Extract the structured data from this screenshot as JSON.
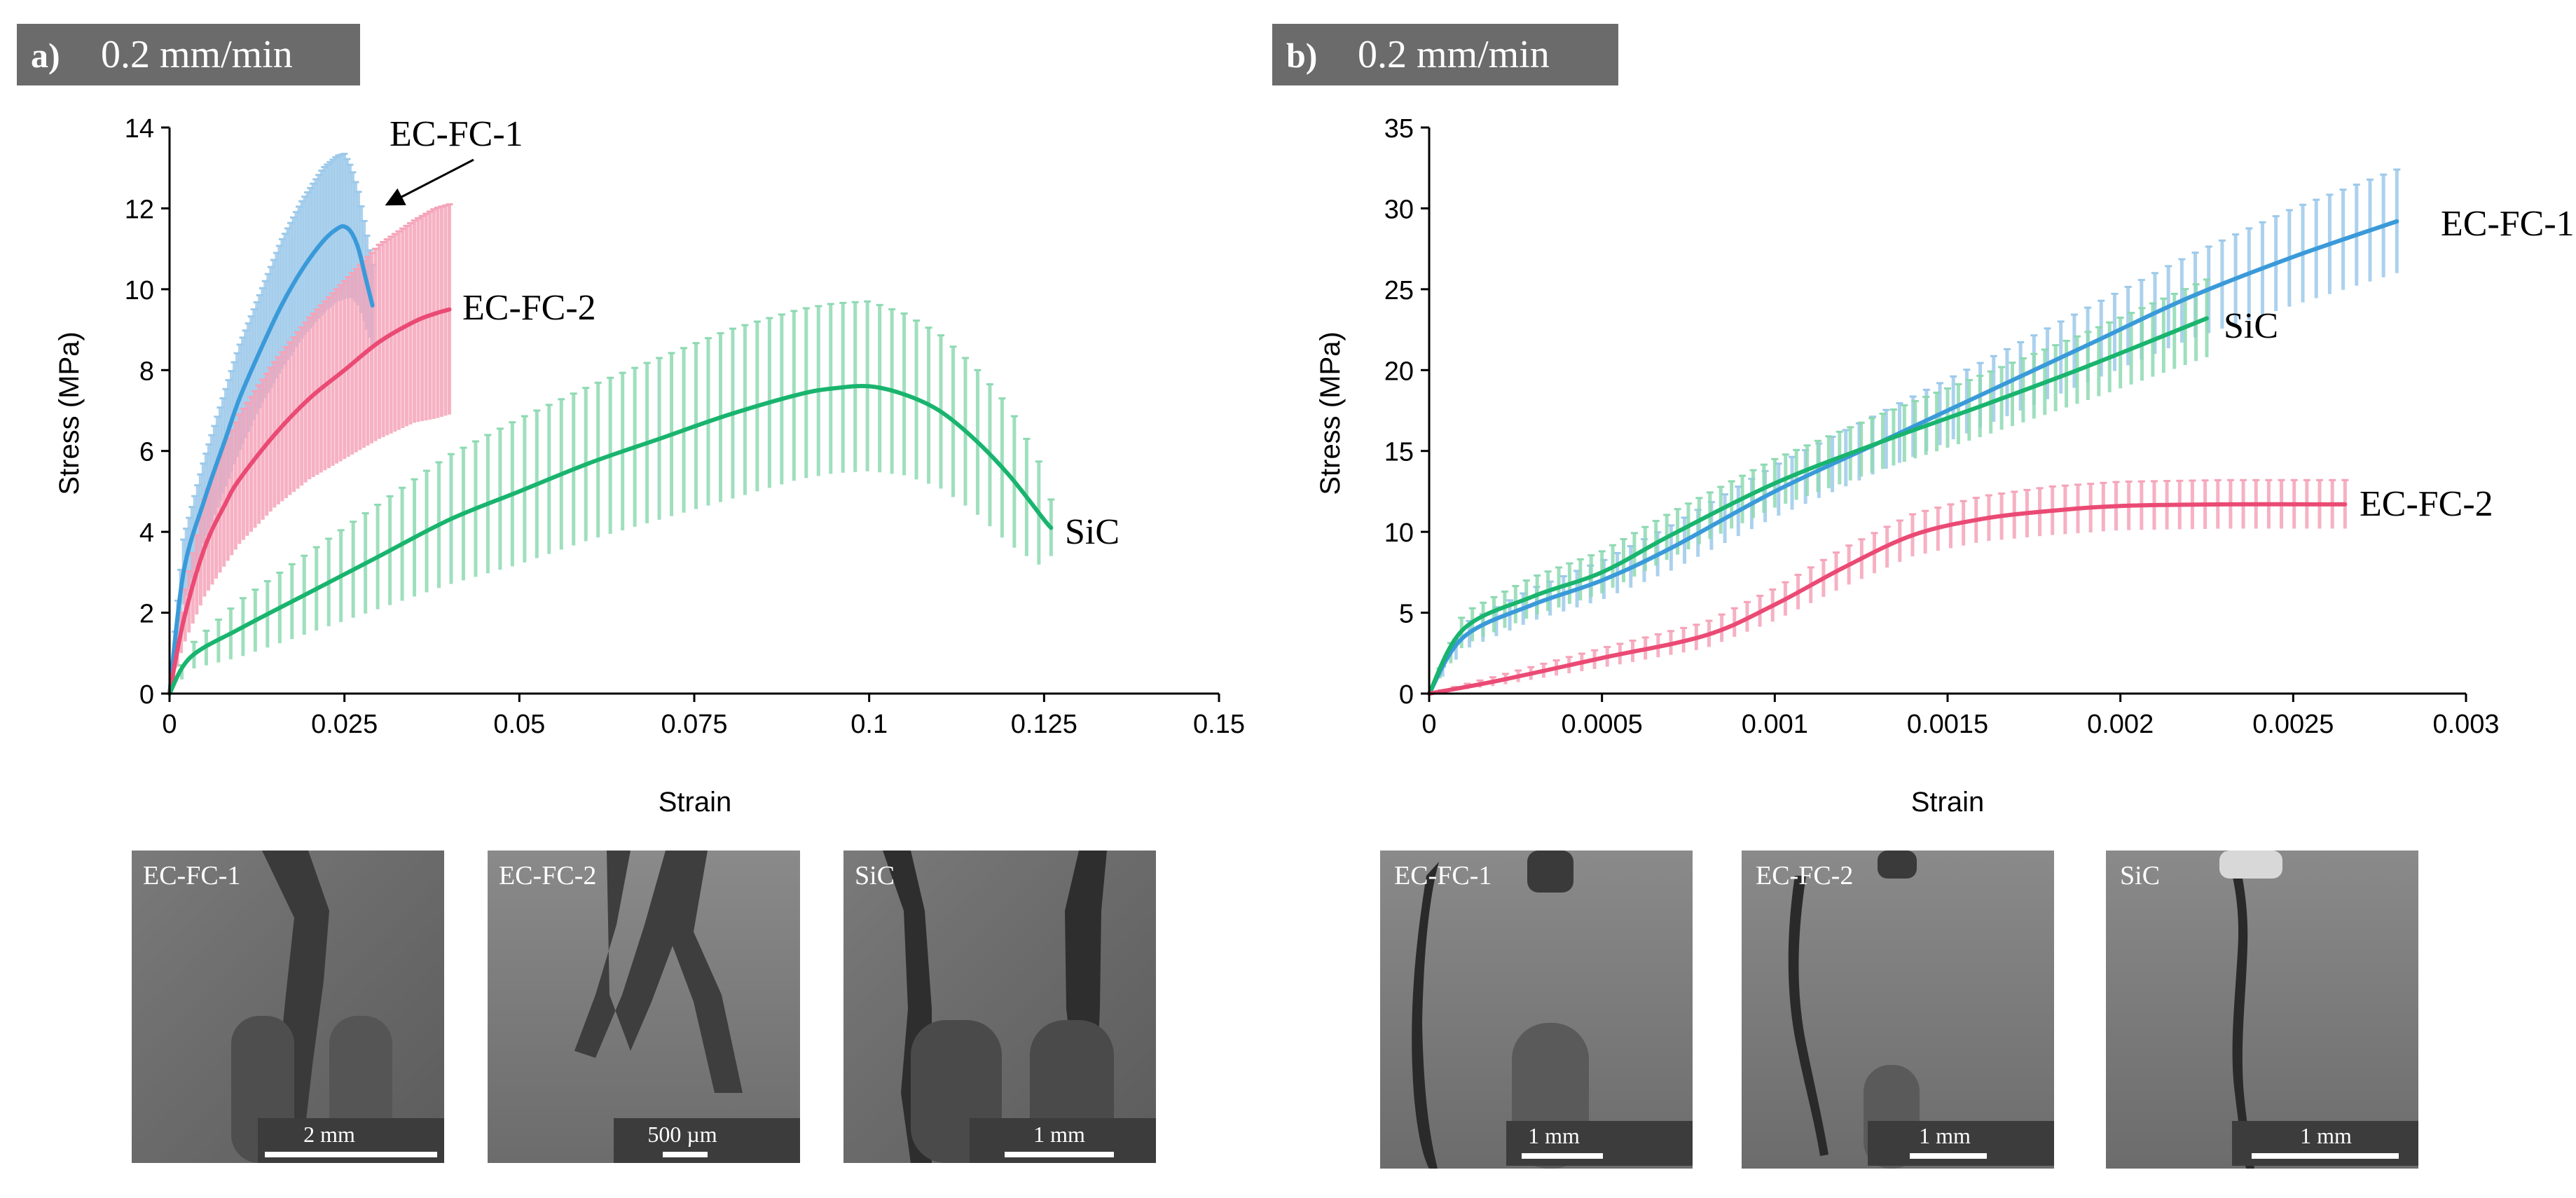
{
  "colors": {
    "ec_fc_1": "#3a9ad9",
    "ec_fc_2": "#ea4a74",
    "sic": "#19b46e",
    "band_ec_fc_1": "#9cc9ea",
    "band_ec_fc_2": "#f5a3b8",
    "band_sic": "#8ed9b2",
    "header_bg": "#6b6b6b",
    "sem_background": "#6f6f6f"
  },
  "chart_data": [
    {
      "panel": "a)",
      "header": "0.2 mm/min",
      "type": "line",
      "title": "",
      "xlabel": "Strain",
      "ylabel": "Stress (MPa)",
      "xlim": [
        0,
        0.15
      ],
      "ylim": [
        0,
        14
      ],
      "xticks": [
        0,
        0.025,
        0.05,
        0.075,
        0.1,
        0.125,
        0.15
      ],
      "yticks": [
        0,
        2,
        4,
        6,
        8,
        10,
        12,
        14
      ],
      "xtick_labels": [
        "0",
        "0.025",
        "0.05",
        "0.075",
        "0.1",
        "0.125",
        "0.15"
      ],
      "ytick_labels": [
        "0",
        "2",
        "4",
        "6",
        "8",
        "10",
        "12",
        "14"
      ],
      "series": [
        {
          "key": "ec_fc_1",
          "name": "EC-FC-1",
          "x": [
            0,
            0.002,
            0.005,
            0.008,
            0.01,
            0.013,
            0.016,
            0.019,
            0.022,
            0.024,
            0.025,
            0.026,
            0.027,
            0.028,
            0.029
          ],
          "y": [
            0,
            3.0,
            4.8,
            6.3,
            7.3,
            8.5,
            9.6,
            10.5,
            11.2,
            11.5,
            11.55,
            11.4,
            11.0,
            10.3,
            9.6
          ],
          "err": [
            0,
            0.8,
            1.0,
            1.2,
            1.3,
            1.4,
            1.6,
            1.7,
            1.8,
            1.8,
            1.8,
            1.6,
            1.4,
            1.2,
            1.0
          ]
        },
        {
          "key": "ec_fc_2",
          "name": "EC-FC-2",
          "x": [
            0,
            0.002,
            0.005,
            0.008,
            0.01,
            0.015,
            0.02,
            0.025,
            0.03,
            0.035,
            0.038,
            0.04
          ],
          "y": [
            0,
            1.8,
            3.6,
            4.7,
            5.3,
            6.4,
            7.3,
            8.0,
            8.7,
            9.2,
            9.4,
            9.5
          ],
          "err": [
            0,
            0.6,
            1.2,
            1.5,
            1.6,
            1.8,
            2.0,
            2.2,
            2.4,
            2.5,
            2.6,
            2.6
          ]
        },
        {
          "key": "sic",
          "name": "SiC",
          "x": [
            0,
            0.003,
            0.01,
            0.02,
            0.03,
            0.04,
            0.05,
            0.06,
            0.07,
            0.08,
            0.09,
            0.095,
            0.1,
            0.105,
            0.11,
            0.115,
            0.12,
            0.125,
            0.126
          ],
          "y": [
            0,
            0.9,
            1.6,
            2.5,
            3.4,
            4.3,
            5.0,
            5.7,
            6.3,
            6.9,
            7.4,
            7.55,
            7.6,
            7.4,
            7.0,
            6.3,
            5.4,
            4.3,
            4.1
          ],
          "err": [
            0,
            0.3,
            0.7,
            1.0,
            1.3,
            1.6,
            1.8,
            1.9,
            2.0,
            2.1,
            2.1,
            2.1,
            2.1,
            2.0,
            1.9,
            1.8,
            1.7,
            1.2,
            0.7
          ]
        }
      ],
      "labels": [
        {
          "key": "ec_fc_1",
          "text": "EC-FC-1",
          "arrow": true
        },
        {
          "key": "ec_fc_2",
          "text": "EC-FC-2"
        },
        {
          "key": "sic",
          "text": "SiC"
        }
      ],
      "images": [
        {
          "caption": "EC-FC-1",
          "scale_bar": "2 mm"
        },
        {
          "caption": "EC-FC-2",
          "scale_bar": "500 µm"
        },
        {
          "caption": "SiC",
          "scale_bar": "1 mm"
        }
      ]
    },
    {
      "panel": "b)",
      "header": "0.2 mm/min",
      "type": "line",
      "title": "",
      "xlabel": "Strain",
      "ylabel": "Stress (MPa)",
      "xlim": [
        0,
        0.003
      ],
      "ylim": [
        0,
        35
      ],
      "xticks": [
        0,
        0.0005,
        0.001,
        0.0015,
        0.002,
        0.0025,
        0.003
      ],
      "yticks": [
        0,
        5,
        10,
        15,
        20,
        25,
        30,
        35
      ],
      "xtick_labels": [
        "0",
        "0.0005",
        "0.001",
        "0.0015",
        "0.002",
        "0.0025",
        "0.003"
      ],
      "ytick_labels": [
        "0",
        "5",
        "10",
        "15",
        "20",
        "25",
        "30",
        "35"
      ],
      "series": [
        {
          "key": "ec_fc_1",
          "name": "EC-FC-1",
          "x": [
            0,
            0.0001,
            0.0003,
            0.0005,
            0.0007,
            0.001,
            0.0013,
            0.0016,
            0.0019,
            0.0022,
            0.0025,
            0.0028
          ],
          "y": [
            0,
            3.5,
            5.5,
            7.0,
            9.0,
            12.5,
            15.5,
            18.5,
            21.5,
            24.5,
            27.0,
            29.2
          ],
          "err": [
            0,
            0.8,
            1.0,
            1.2,
            1.4,
            1.6,
            1.8,
            2.0,
            2.3,
            2.6,
            3.0,
            3.2
          ]
        },
        {
          "key": "sic",
          "name": "SiC",
          "x": [
            0,
            0.0001,
            0.0003,
            0.0005,
            0.0007,
            0.001,
            0.0013,
            0.0016,
            0.0019,
            0.00225
          ],
          "y": [
            0,
            4.0,
            6.0,
            7.5,
            9.8,
            13.0,
            15.5,
            17.8,
            20.2,
            23.2
          ],
          "err": [
            0,
            1.0,
            1.2,
            1.3,
            1.4,
            1.5,
            1.7,
            1.9,
            2.1,
            2.4
          ]
        },
        {
          "key": "ec_fc_2",
          "name": "EC-FC-2",
          "x": [
            0,
            0.0002,
            0.0005,
            0.0008,
            0.001,
            0.0012,
            0.0014,
            0.0016,
            0.0018,
            0.002,
            0.0023,
            0.00265
          ],
          "y": [
            0,
            0.8,
            2.2,
            3.6,
            5.5,
            7.8,
            9.8,
            10.8,
            11.3,
            11.6,
            11.7,
            11.7
          ],
          "err": [
            0,
            0.3,
            0.6,
            0.8,
            1.0,
            1.2,
            1.3,
            1.4,
            1.5,
            1.5,
            1.5,
            1.5
          ]
        }
      ],
      "labels": [
        {
          "key": "ec_fc_1",
          "text": "EC-FC-1"
        },
        {
          "key": "sic",
          "text": "SiC"
        },
        {
          "key": "ec_fc_2",
          "text": "EC-FC-2"
        }
      ],
      "images": [
        {
          "caption": "EC-FC-1",
          "scale_bar": "1 mm"
        },
        {
          "caption": "EC-FC-2",
          "scale_bar": "1 mm"
        },
        {
          "caption": "SiC",
          "scale_bar": "1 mm"
        }
      ]
    }
  ]
}
